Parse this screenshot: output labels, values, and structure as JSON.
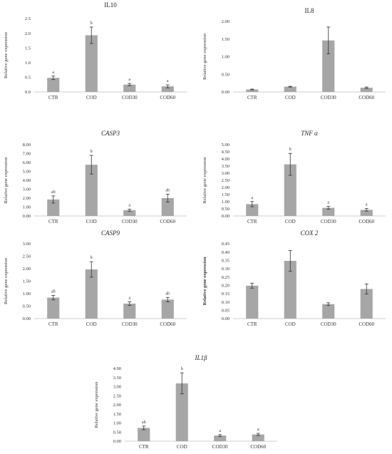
{
  "chart_data": [
    {
      "type": "bar",
      "title": "IL10",
      "title_italic": false,
      "ylabel": "Relative gene expression",
      "ylabel_bold": false,
      "ylim": [
        0,
        2.5
      ],
      "ystep": 0.5,
      "ydecimals": 1,
      "categories": [
        "CTR",
        "COD",
        "COD30",
        "COD60"
      ],
      "values": [
        0.48,
        1.93,
        0.25,
        0.19
      ],
      "errors": [
        0.06,
        0.28,
        0.04,
        0.05
      ],
      "letters": [
        "a",
        "b",
        "a",
        "a"
      ]
    },
    {
      "type": "bar",
      "title": "IL8",
      "title_italic": false,
      "ylabel": "Relative gene expression",
      "ylabel_bold": false,
      "ylim": [
        0,
        2.0
      ],
      "ystep": 0.5,
      "ydecimals": 2,
      "categories": [
        "CTR",
        "COD",
        "COD30",
        "COD60"
      ],
      "values": [
        0.07,
        0.15,
        1.46,
        0.12
      ],
      "errors": [
        0.01,
        0.01,
        0.38,
        0.02
      ],
      "letters": [
        "",
        "",
        "",
        ""
      ]
    },
    {
      "type": "bar",
      "title": "CASP3",
      "title_italic": true,
      "ylabel": "Relative gene expression",
      "ylabel_bold": false,
      "ylim": [
        0,
        8.0
      ],
      "ystep": 1.0,
      "ydecimals": 2,
      "categories": [
        "CTR",
        "COD",
        "COD30",
        "COD60"
      ],
      "values": [
        1.85,
        5.75,
        0.65,
        2.0
      ],
      "errors": [
        0.4,
        1.05,
        0.12,
        0.45
      ],
      "letters": [
        "ab",
        "b",
        "a",
        "ab"
      ]
    },
    {
      "type": "bar",
      "title": "TNF α",
      "title_italic": true,
      "ylabel": "Relative gene expression",
      "ylabel_bold": false,
      "ylim": [
        0,
        5.0
      ],
      "ystep": 0.5,
      "ydecimals": 2,
      "categories": [
        "CTR",
        "COD",
        "COD30",
        "COD60"
      ],
      "values": [
        0.83,
        3.62,
        0.57,
        0.43
      ],
      "errors": [
        0.18,
        0.77,
        0.1,
        0.09
      ],
      "letters": [
        "a",
        "b",
        "a",
        "a"
      ]
    },
    {
      "type": "bar",
      "title": "CASP9",
      "title_italic": true,
      "ylabel": "Relative gene expression",
      "ylabel_bold": false,
      "ylim": [
        0,
        3.0
      ],
      "ystep": 0.5,
      "ydecimals": 2,
      "categories": [
        "CTR",
        "COD",
        "COD30",
        "COD60"
      ],
      "values": [
        0.84,
        1.97,
        0.6,
        0.76
      ],
      "errors": [
        0.09,
        0.31,
        0.07,
        0.09
      ],
      "letters": [
        "ab",
        "b",
        "a",
        "ab"
      ]
    },
    {
      "type": "bar",
      "title": "COX 2",
      "title_italic": true,
      "ylabel": "Relative gene expression",
      "ylabel_bold": true,
      "ylim": [
        0,
        0.45
      ],
      "ystep": 0.05,
      "ydecimals": 2,
      "categories": [
        "CTR",
        "COD",
        "COD30",
        "COD60"
      ],
      "values": [
        0.198,
        0.347,
        0.087,
        0.178
      ],
      "errors": [
        0.015,
        0.063,
        0.008,
        0.03
      ],
      "letters": [
        "",
        "",
        "",
        ""
      ]
    },
    {
      "type": "bar",
      "title": "IL1β",
      "title_italic": true,
      "ylabel": "Relative gene expression",
      "ylabel_bold": false,
      "ylim": [
        0,
        4.0
      ],
      "ystep": 0.5,
      "ydecimals": 2,
      "categories": [
        "CTR",
        "COD",
        "COD30",
        "COD60"
      ],
      "values": [
        0.73,
        3.18,
        0.31,
        0.37
      ],
      "errors": [
        0.1,
        0.58,
        0.05,
        0.06
      ],
      "letters": [
        "ab",
        "b",
        "a",
        "a"
      ]
    }
  ]
}
